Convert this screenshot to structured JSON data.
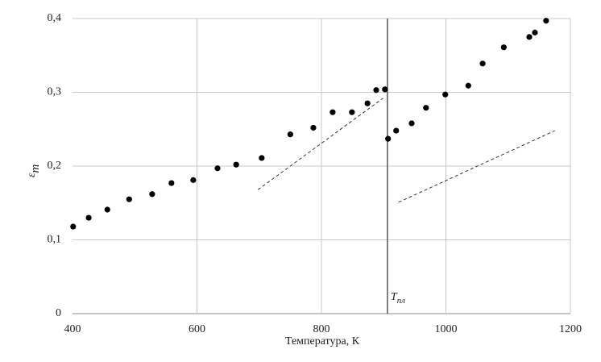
{
  "chart_data": {
    "type": "scatter",
    "x_label": "Температура, К",
    "y_label": "ε",
    "y_label_sub": "m",
    "xlim": [
      400,
      1200
    ],
    "xticks": [
      400,
      600,
      800,
      1000,
      1200
    ],
    "ylim": [
      0,
      0.4
    ],
    "yticks": [
      0,
      {
        "value": 0.1,
        "label": "0,1"
      },
      {
        "value": 0.2,
        "label": "0,2"
      },
      {
        "value": 0.3,
        "label": "0,3"
      },
      {
        "value": 0.4,
        "label": "0,4"
      }
    ],
    "grid": true,
    "series": [
      {
        "color": "#000000",
        "x": [
          401,
          426,
          456,
          491,
          528,
          559,
          594,
          633,
          663,
          704,
          750,
          787,
          818,
          849,
          874,
          888,
          902,
          907,
          920,
          945,
          968,
          999,
          1036,
          1059,
          1093,
          1134,
          1143,
          1161
        ],
        "values": [
          0.118,
          0.13,
          0.141,
          0.155,
          0.162,
          0.177,
          0.181,
          0.197,
          0.202,
          0.211,
          0.243,
          0.252,
          0.273,
          0.273,
          0.285,
          0.303,
          0.304,
          0.237,
          0.248,
          0.258,
          0.279,
          0.297,
          0.309,
          0.339,
          0.361,
          0.375,
          0.381,
          0.397
        ]
      }
    ],
    "trend_lines": [
      {
        "x": [
          698,
          899
        ],
        "values": [
          0.168,
          0.292
        ]
      },
      {
        "x": [
          924,
          1175
        ],
        "values": [
          0.151,
          0.248
        ]
      }
    ],
    "vline": {
      "x": 906,
      "label": "T",
      "label_sub": "пл"
    }
  }
}
